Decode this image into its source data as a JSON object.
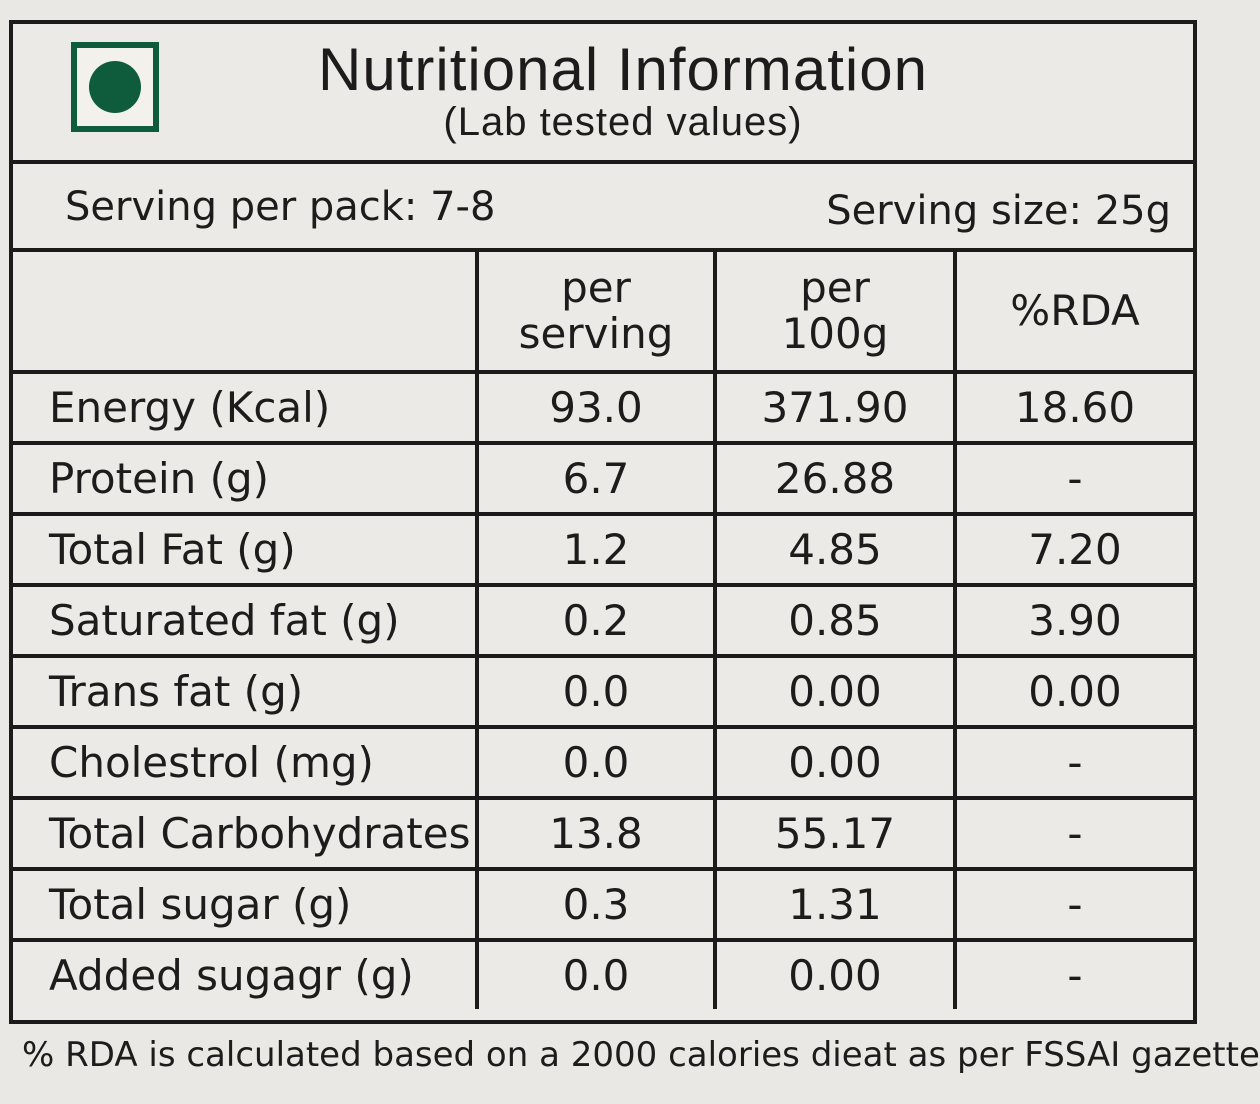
{
  "header": {
    "title": "Nutritional Information",
    "subtitle": "(Lab tested values)",
    "veg_mark_color": "#0f5c3c"
  },
  "serving": {
    "per_pack": "Serving per pack: 7-8",
    "size": "Serving size: 25g"
  },
  "columns": {
    "per_serving": [
      "per",
      "serving"
    ],
    "per_100g": [
      "per",
      "100g"
    ],
    "rda": "%RDA"
  },
  "rows": [
    {
      "name": "Energy (Kcal)",
      "per_serving": "93.0",
      "per_100g": "371.90",
      "rda": "18.60"
    },
    {
      "name": "Protein (g)",
      "per_serving": "6.7",
      "per_100g": "26.88",
      "rda": "-"
    },
    {
      "name": "Total Fat (g)",
      "per_serving": "1.2",
      "per_100g": "4.85",
      "rda": "7.20"
    },
    {
      "name": "Saturated fat (g)",
      "per_serving": "0.2",
      "per_100g": "0.85",
      "rda": "3.90"
    },
    {
      "name": "Trans fat (g)",
      "per_serving": "0.0",
      "per_100g": "0.00",
      "rda": "0.00"
    },
    {
      "name": "Cholestrol (mg)",
      "per_serving": "0.0",
      "per_100g": "0.00",
      "rda": "-"
    },
    {
      "name": "Total Carbohydrates",
      "per_serving": "13.8",
      "per_100g": "55.17",
      "rda": "-"
    },
    {
      "name": "Total sugar (g)",
      "per_serving": "0.3",
      "per_100g": "1.31",
      "rda": "-"
    },
    {
      "name": "Added sugagr (g)",
      "per_serving": "0.0",
      "per_100g": "0.00",
      "rda": "-"
    }
  ],
  "footnote": "% RDA is calculated based on a 2000 calories dieat as per FSSAI gazette"
}
